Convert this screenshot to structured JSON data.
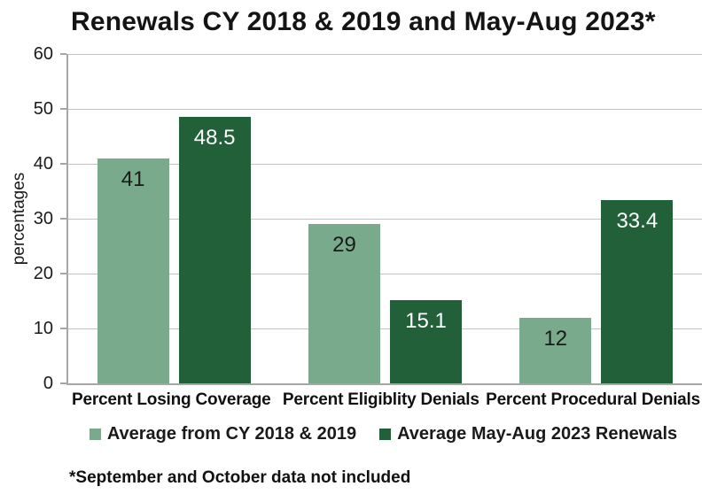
{
  "chart_data": {
    "type": "bar",
    "title": "Renewals CY 2018 & 2019 and May-Aug 2023*",
    "categories": [
      "Percent Losing Coverage",
      "Percent Eligiblity Denials",
      "Percent Procedural Denials"
    ],
    "series": [
      {
        "name": "Average from CY 2018 & 2019",
        "color": "#7aaa8c",
        "label_color": "#1a1a1a",
        "values": [
          41,
          29,
          12
        ]
      },
      {
        "name": "Average May-Aug 2023 Renewals",
        "color": "#216039",
        "label_color": "#ffffff",
        "values": [
          48.5,
          15.1,
          33.4
        ]
      }
    ],
    "xlabel": "",
    "ylabel": "percentages",
    "ylim": [
      0,
      60
    ],
    "yticks": [
      0,
      10,
      20,
      30,
      40,
      50,
      60
    ],
    "grid": true,
    "legend_position": "bottom",
    "annotations": [
      "*September and October data not included"
    ]
  },
  "colors": {
    "series_light_green": "#7aaa8c",
    "series_dark_green": "#216039",
    "gridline": "#c3c3c3",
    "axis": "#a6a6a6",
    "text": "#1a1a1a"
  }
}
